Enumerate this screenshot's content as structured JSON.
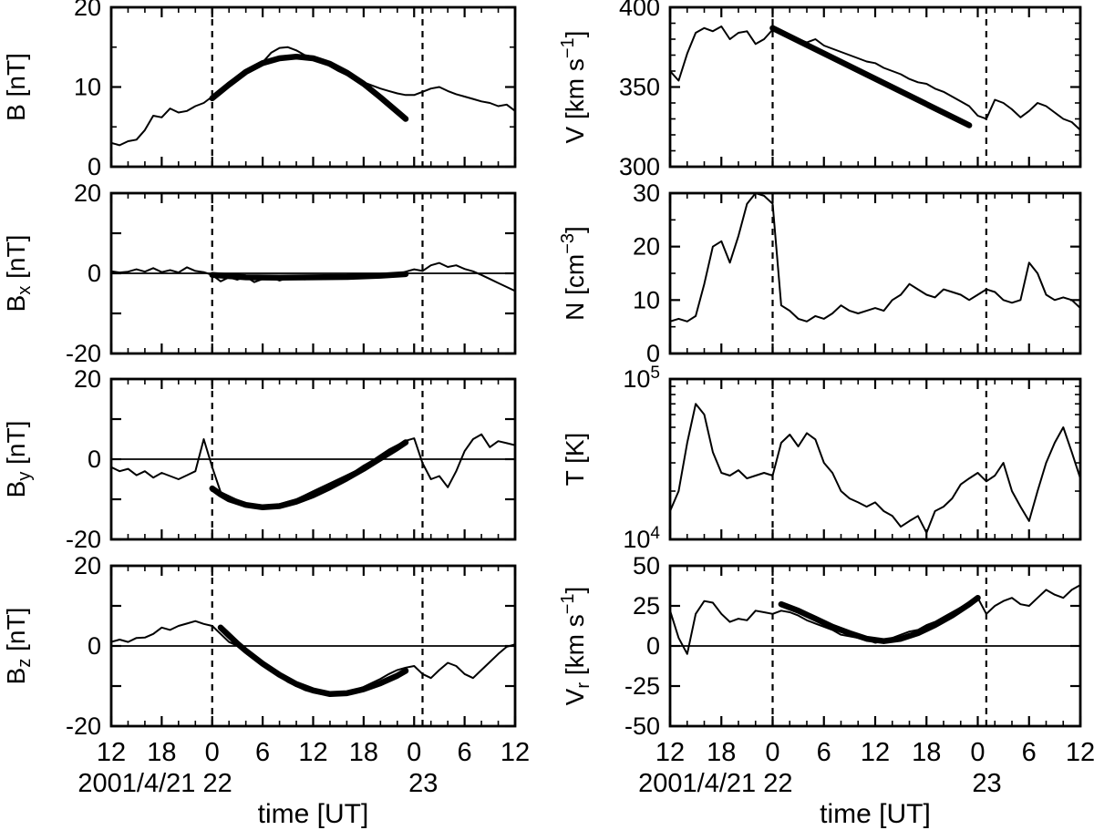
{
  "figure": {
    "bg": "#ffffff",
    "fg": "#000000",
    "xlabel": "time [UT]",
    "x_axis": {
      "lim": [
        0,
        48
      ],
      "major_ticks": [
        0,
        6,
        12,
        18,
        24,
        30,
        36,
        42,
        48
      ],
      "tick_labels": [
        "12",
        "18",
        "0",
        "6",
        "12",
        "18",
        "0",
        "6",
        "12"
      ],
      "minor_step": 2,
      "date_left": "2001/4/21 22",
      "date_right": "23",
      "date_left_anchor_hour": 12,
      "date_right_anchor_hour": 36
    },
    "vlines": [
      12,
      37
    ]
  },
  "chart_data": [
    {
      "id": "B",
      "type": "line",
      "row": 0,
      "col": 0,
      "ylabel": [
        {
          "t": "B [nT]"
        }
      ],
      "yscale": "linear",
      "ylim": [
        0,
        20
      ],
      "zero_line": false,
      "yticks": [
        {
          "v": 0,
          "label": "0"
        },
        {
          "v": 10,
          "label": "10"
        },
        {
          "v": 20,
          "label": "20"
        }
      ],
      "yminor": [
        5,
        15
      ],
      "series": [
        {
          "name": "observed",
          "width": 2,
          "x": {
            "start": 0,
            "step": 1,
            "n": 49
          },
          "y": [
            3.0,
            2.7,
            3.2,
            3.4,
            4.6,
            6.4,
            6.2,
            7.3,
            6.8,
            7.0,
            7.6,
            8.0,
            8.8,
            9.3,
            10.1,
            11.0,
            11.6,
            12.6,
            13.1,
            14.3,
            14.9,
            15.0,
            14.6,
            14.0,
            13.8,
            13.2,
            12.6,
            12.0,
            11.5,
            11.0,
            10.6,
            10.2,
            9.8,
            9.5,
            9.2,
            9.0,
            9.0,
            9.4,
            9.8,
            10.0,
            9.5,
            9.1,
            8.8,
            8.5,
            8.2,
            8.0,
            7.6,
            7.8,
            7.0
          ]
        },
        {
          "name": "fit",
          "width": 6.5,
          "x": [
            12,
            14,
            16,
            18,
            20,
            22,
            24,
            26,
            28,
            30,
            32,
            34,
            35
          ],
          "y": [
            8.6,
            10.3,
            11.9,
            13.0,
            13.6,
            13.8,
            13.6,
            12.9,
            11.8,
            10.4,
            8.7,
            6.9,
            6.0
          ]
        }
      ]
    },
    {
      "id": "Bx",
      "type": "line",
      "row": 1,
      "col": 0,
      "ylabel": [
        {
          "t": "B"
        },
        {
          "t": "x",
          "sub": true
        },
        {
          "t": " [nT]"
        }
      ],
      "yscale": "linear",
      "ylim": [
        -20,
        20
      ],
      "zero_line": true,
      "yticks": [
        {
          "v": -20,
          "label": "-20"
        },
        {
          "v": -10
        },
        {
          "v": 0,
          "label": "0"
        },
        {
          "v": 10
        },
        {
          "v": 20,
          "label": "20"
        }
      ],
      "yminor": [],
      "series": [
        {
          "name": "observed",
          "width": 2,
          "x": {
            "start": 0,
            "step": 1,
            "n": 49
          },
          "y": [
            0.5,
            0.2,
            0.4,
            1.0,
            0.4,
            1.3,
            0.3,
            0.8,
            0.2,
            1.5,
            0.6,
            0.3,
            -0.4,
            -2.0,
            -1.0,
            -1.6,
            -0.8,
            -2.2,
            -1.4,
            -1.0,
            -1.8,
            -1.2,
            -1.0,
            -1.5,
            -1.0,
            -0.9,
            -0.8,
            -1.2,
            -1.0,
            -0.6,
            -0.9,
            -0.7,
            -0.8,
            -0.5,
            -0.3,
            0.4,
            1.0,
            0.6,
            2.0,
            2.6,
            1.6,
            2.0,
            1.1,
            0.5,
            -0.4,
            -1.4,
            -2.4,
            -3.4,
            -4.4
          ]
        },
        {
          "name": "fit",
          "width": 6.5,
          "x": [
            12,
            16,
            20,
            24,
            28,
            32,
            35
          ],
          "y": [
            -0.4,
            -1.0,
            -1.1,
            -1.0,
            -0.9,
            -0.6,
            -0.2
          ]
        }
      ]
    },
    {
      "id": "By",
      "type": "line",
      "row": 2,
      "col": 0,
      "ylabel": [
        {
          "t": "B"
        },
        {
          "t": "y",
          "sub": true
        },
        {
          "t": " [nT]"
        }
      ],
      "yscale": "linear",
      "ylim": [
        -20,
        20
      ],
      "zero_line": true,
      "yticks": [
        {
          "v": -20,
          "label": "-20"
        },
        {
          "v": -10
        },
        {
          "v": 0,
          "label": "0"
        },
        {
          "v": 10
        },
        {
          "v": 20,
          "label": "20"
        }
      ],
      "yminor": [],
      "series": [
        {
          "name": "observed",
          "width": 2,
          "x": {
            "start": 0,
            "step": 1,
            "n": 49
          },
          "y": [
            -2.0,
            -3.0,
            -2.4,
            -4.0,
            -3.0,
            -4.6,
            -3.4,
            -4.2,
            -5.0,
            -4.0,
            -3.0,
            5.0,
            -2.0,
            -8.2,
            -9.2,
            -10.2,
            -11.4,
            -12.0,
            -11.6,
            -12.0,
            -11.2,
            -10.6,
            -10.0,
            -9.0,
            -8.0,
            -7.0,
            -6.0,
            -5.0,
            -4.0,
            -3.0,
            -1.6,
            -0.4,
            1.0,
            2.4,
            3.5,
            4.6,
            5.2,
            -1.0,
            -5.0,
            -4.2,
            -7.0,
            -3.0,
            2.0,
            5.0,
            6.2,
            3.0,
            4.5,
            4.0,
            3.5
          ]
        },
        {
          "name": "fit",
          "width": 6.5,
          "x": [
            12,
            13,
            14,
            16,
            18,
            20,
            22,
            24,
            26,
            28,
            30,
            32,
            34,
            35
          ],
          "y": [
            -7.3,
            -8.8,
            -10.0,
            -11.4,
            -12.0,
            -11.7,
            -10.6,
            -9.0,
            -7.0,
            -4.8,
            -2.4,
            0.2,
            2.8,
            4.2
          ]
        }
      ]
    },
    {
      "id": "Bz",
      "type": "line",
      "row": 3,
      "col": 0,
      "ylabel": [
        {
          "t": "B"
        },
        {
          "t": "z",
          "sub": true
        },
        {
          "t": " [nT]"
        }
      ],
      "yscale": "linear",
      "ylim": [
        -20,
        20
      ],
      "zero_line": true,
      "yticks": [
        {
          "v": -20,
          "label": "-20"
        },
        {
          "v": -10
        },
        {
          "v": 0,
          "label": "0"
        },
        {
          "v": 10
        },
        {
          "v": 20,
          "label": "20"
        }
      ],
      "yminor": [],
      "series": [
        {
          "name": "observed",
          "width": 2,
          "x": {
            "start": 0,
            "step": 1,
            "n": 49
          },
          "y": [
            1.0,
            1.6,
            1.0,
            2.0,
            2.1,
            3.0,
            4.6,
            4.0,
            5.0,
            5.6,
            6.2,
            5.5,
            5.0,
            3.0,
            1.0,
            0.0,
            -1.6,
            -3.0,
            -4.6,
            -6.0,
            -7.6,
            -9.0,
            -10.0,
            -11.0,
            -11.6,
            -12.0,
            -12.0,
            -11.8,
            -11.4,
            -11.0,
            -10.2,
            -9.2,
            -8.2,
            -7.0,
            -6.0,
            -5.4,
            -5.0,
            -7.0,
            -8.0,
            -6.0,
            -4.2,
            -5.0,
            -7.0,
            -8.0,
            -6.0,
            -4.0,
            -2.0,
            -0.2,
            0.4
          ]
        },
        {
          "name": "fit",
          "width": 6.5,
          "x": [
            13,
            14,
            15,
            16,
            18,
            20,
            22,
            24,
            26,
            28,
            30,
            32,
            34,
            35
          ],
          "y": [
            4.6,
            2.6,
            0.6,
            -1.2,
            -4.4,
            -7.2,
            -9.5,
            -11.1,
            -12.0,
            -11.8,
            -10.8,
            -9.3,
            -7.4,
            -6.2
          ]
        }
      ]
    },
    {
      "id": "V",
      "type": "line",
      "row": 0,
      "col": 1,
      "ylabel": [
        {
          "t": "V [km s"
        },
        {
          "t": "−1",
          "sup": true
        },
        {
          "t": "]"
        }
      ],
      "yscale": "linear",
      "ylim": [
        300,
        400
      ],
      "zero_line": false,
      "yticks": [
        {
          "v": 300,
          "label": "300"
        },
        {
          "v": 350,
          "label": "350"
        },
        {
          "v": 400,
          "label": "400"
        }
      ],
      "yminor": [
        310,
        320,
        330,
        340,
        360,
        370,
        380,
        390
      ],
      "series": [
        {
          "name": "observed",
          "width": 2,
          "x": {
            "start": 0,
            "step": 1,
            "n": 49
          },
          "y": [
            360,
            354,
            371,
            384,
            387,
            385,
            388,
            380,
            384,
            385,
            377,
            380,
            386,
            385,
            382,
            380,
            378,
            380,
            376,
            374,
            372,
            370,
            368,
            366,
            365,
            362,
            360,
            358,
            355,
            353,
            352,
            349,
            347,
            344,
            341,
            338,
            332,
            330,
            342,
            340,
            336,
            331,
            335,
            340,
            338,
            334,
            330,
            328,
            323
          ]
        },
        {
          "name": "fit",
          "width": 6.5,
          "x": [
            12,
            35
          ],
          "y": [
            387,
            326
          ]
        }
      ]
    },
    {
      "id": "N",
      "type": "line",
      "row": 1,
      "col": 1,
      "ylabel": [
        {
          "t": "N [cm"
        },
        {
          "t": "−3",
          "sup": true
        },
        {
          "t": "]"
        }
      ],
      "yscale": "linear",
      "ylim": [
        0,
        30
      ],
      "zero_line": false,
      "yticks": [
        {
          "v": 0,
          "label": "0"
        },
        {
          "v": 10,
          "label": "10"
        },
        {
          "v": 20,
          "label": "20"
        },
        {
          "v": 30,
          "label": "30"
        }
      ],
      "yminor": [
        5,
        15,
        25
      ],
      "series": [
        {
          "name": "observed",
          "width": 2,
          "x": {
            "start": 0,
            "step": 1,
            "n": 49
          },
          "y": [
            6,
            6.5,
            6,
            7,
            13,
            20,
            21,
            17,
            22,
            28,
            30,
            29.5,
            28,
            9,
            8,
            6.5,
            6,
            7,
            6.5,
            7.5,
            9,
            8,
            7.5,
            8,
            8.5,
            8,
            10,
            11,
            13,
            12,
            11,
            10.5,
            12,
            11.5,
            11,
            10,
            11,
            12,
            11.5,
            10,
            9.5,
            10,
            17,
            15,
            11,
            10,
            10.5,
            10,
            8.5
          ]
        }
      ]
    },
    {
      "id": "T",
      "type": "line",
      "row": 2,
      "col": 1,
      "ylabel": [
        {
          "t": "T [K]"
        }
      ],
      "yscale": "log",
      "ylim": [
        10000,
        100000
      ],
      "zero_line": false,
      "yticks": [
        {
          "v": 10000,
          "label": [
            {
              "t": "10"
            },
            {
              "t": "4",
              "sup": true
            }
          ]
        },
        {
          "v": 100000,
          "label": [
            {
              "t": "10"
            },
            {
              "t": "5",
              "sup": true
            }
          ]
        }
      ],
      "yminor": [
        20000,
        30000,
        40000,
        50000,
        60000,
        70000,
        80000,
        90000
      ],
      "series": [
        {
          "name": "observed",
          "width": 2,
          "x": {
            "start": 0,
            "step": 1,
            "n": 49
          },
          "y": [
            15000,
            20000,
            40000,
            70000,
            60000,
            35000,
            26000,
            25000,
            27000,
            24000,
            25000,
            26000,
            25000,
            40000,
            45000,
            38000,
            46000,
            42000,
            30000,
            26000,
            20000,
            18000,
            17000,
            16000,
            17000,
            15000,
            14000,
            12000,
            13000,
            14000,
            11000,
            15000,
            16000,
            18000,
            22000,
            24000,
            26000,
            23000,
            25000,
            30000,
            20000,
            16000,
            13000,
            20000,
            30000,
            40000,
            50000,
            35000,
            24000
          ]
        }
      ]
    },
    {
      "id": "Vr",
      "type": "line",
      "row": 3,
      "col": 1,
      "ylabel": [
        {
          "t": "V"
        },
        {
          "t": "r",
          "sub": true
        },
        {
          "t": " [km s"
        },
        {
          "t": "−1",
          "sup": true
        },
        {
          "t": "]"
        }
      ],
      "yscale": "linear",
      "ylim": [
        -50,
        50
      ],
      "zero_line": true,
      "yticks": [
        {
          "v": -50,
          "label": "-50"
        },
        {
          "v": -25,
          "label": "-25"
        },
        {
          "v": 0,
          "label": "0"
        },
        {
          "v": 25,
          "label": "25"
        },
        {
          "v": 50,
          "label": "50"
        }
      ],
      "yminor": [],
      "series": [
        {
          "name": "observed",
          "width": 2,
          "x": {
            "start": 0,
            "step": 1,
            "n": 49
          },
          "y": [
            22,
            5,
            -5,
            20,
            28,
            27,
            20,
            15,
            17,
            16,
            22,
            21,
            20,
            22,
            21,
            19,
            16,
            14,
            12,
            10,
            7,
            6,
            5,
            4,
            2,
            3,
            5,
            7,
            9,
            10,
            13,
            15,
            18,
            21,
            24,
            27,
            30,
            20,
            25,
            28,
            30,
            26,
            25,
            30,
            35,
            32,
            30,
            35,
            38
          ]
        },
        {
          "name": "fit",
          "width": 6.5,
          "x": [
            13,
            15,
            17,
            19,
            21,
            23,
            25,
            27,
            29,
            31,
            33,
            35,
            36
          ],
          "y": [
            26,
            22,
            17,
            12,
            8,
            4.5,
            3,
            4.5,
            8,
            13,
            19,
            26,
            30
          ]
        }
      ]
    }
  ]
}
